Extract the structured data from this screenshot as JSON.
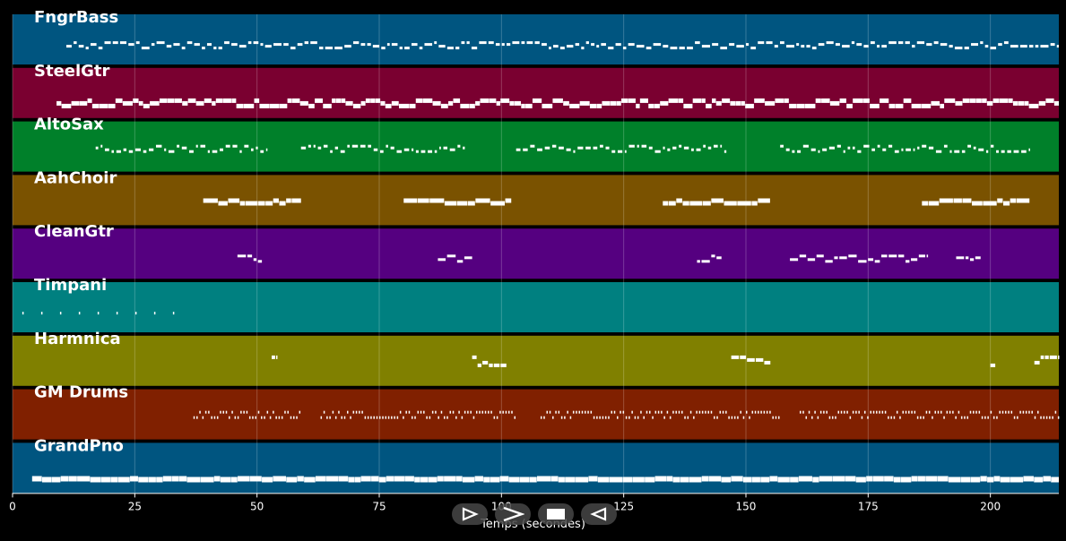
{
  "chart_data": {
    "type": "piano-roll",
    "xlabel": "Temps (secondes)",
    "xlim": [
      0,
      214
    ],
    "x_ticks": [
      0,
      25,
      50,
      75,
      100,
      125,
      150,
      175,
      200
    ],
    "grid": true,
    "tracks": [
      {
        "name": "FngrBass",
        "color": "#005580",
        "density": "dense",
        "segments": [
          [
            11,
            214
          ]
        ]
      },
      {
        "name": "SteelGtr",
        "color": "#7a0030",
        "density": "block",
        "segments": [
          [
            9,
            214
          ]
        ]
      },
      {
        "name": "AltoSax",
        "color": "#00802a",
        "density": "dotted",
        "segments": [
          [
            17,
            52
          ],
          [
            59,
            93
          ],
          [
            103,
            146
          ],
          [
            157,
            208
          ]
        ]
      },
      {
        "name": "AahChoir",
        "color": "#7a5200",
        "density": "sparse",
        "segments": [
          [
            39,
            59
          ],
          [
            80,
            102
          ],
          [
            133,
            155
          ],
          [
            186,
            208
          ]
        ]
      },
      {
        "name": "CleanGtr",
        "color": "#550080",
        "density": "short",
        "segments": [
          [
            46,
            51
          ],
          [
            87,
            94
          ],
          [
            140,
            145
          ],
          [
            159,
            187
          ],
          [
            193,
            198
          ]
        ]
      },
      {
        "name": "Timpani",
        "color": "#008080",
        "density": "ticks",
        "segments": [
          [
            2,
            35
          ]
        ]
      },
      {
        "name": "Harmnica",
        "color": "#808000",
        "density": "phrase",
        "segments": [
          [
            53,
            54
          ],
          [
            94,
            101
          ],
          [
            147,
            155
          ],
          [
            200,
            201
          ],
          [
            209,
            214
          ]
        ]
      },
      {
        "name": "GM Drums",
        "color": "#802000",
        "density": "drums",
        "segments": [
          [
            37,
            59
          ],
          [
            63,
            103
          ],
          [
            108,
            157
          ],
          [
            161,
            214
          ]
        ]
      },
      {
        "name": "GrandPno",
        "color": "#005580",
        "density": "solid",
        "segments": [
          [
            4,
            214
          ]
        ]
      }
    ]
  },
  "controls": {
    "play_label": "play",
    "forward_label": "forward",
    "stop_label": "stop",
    "rewind_label": "rewind"
  }
}
